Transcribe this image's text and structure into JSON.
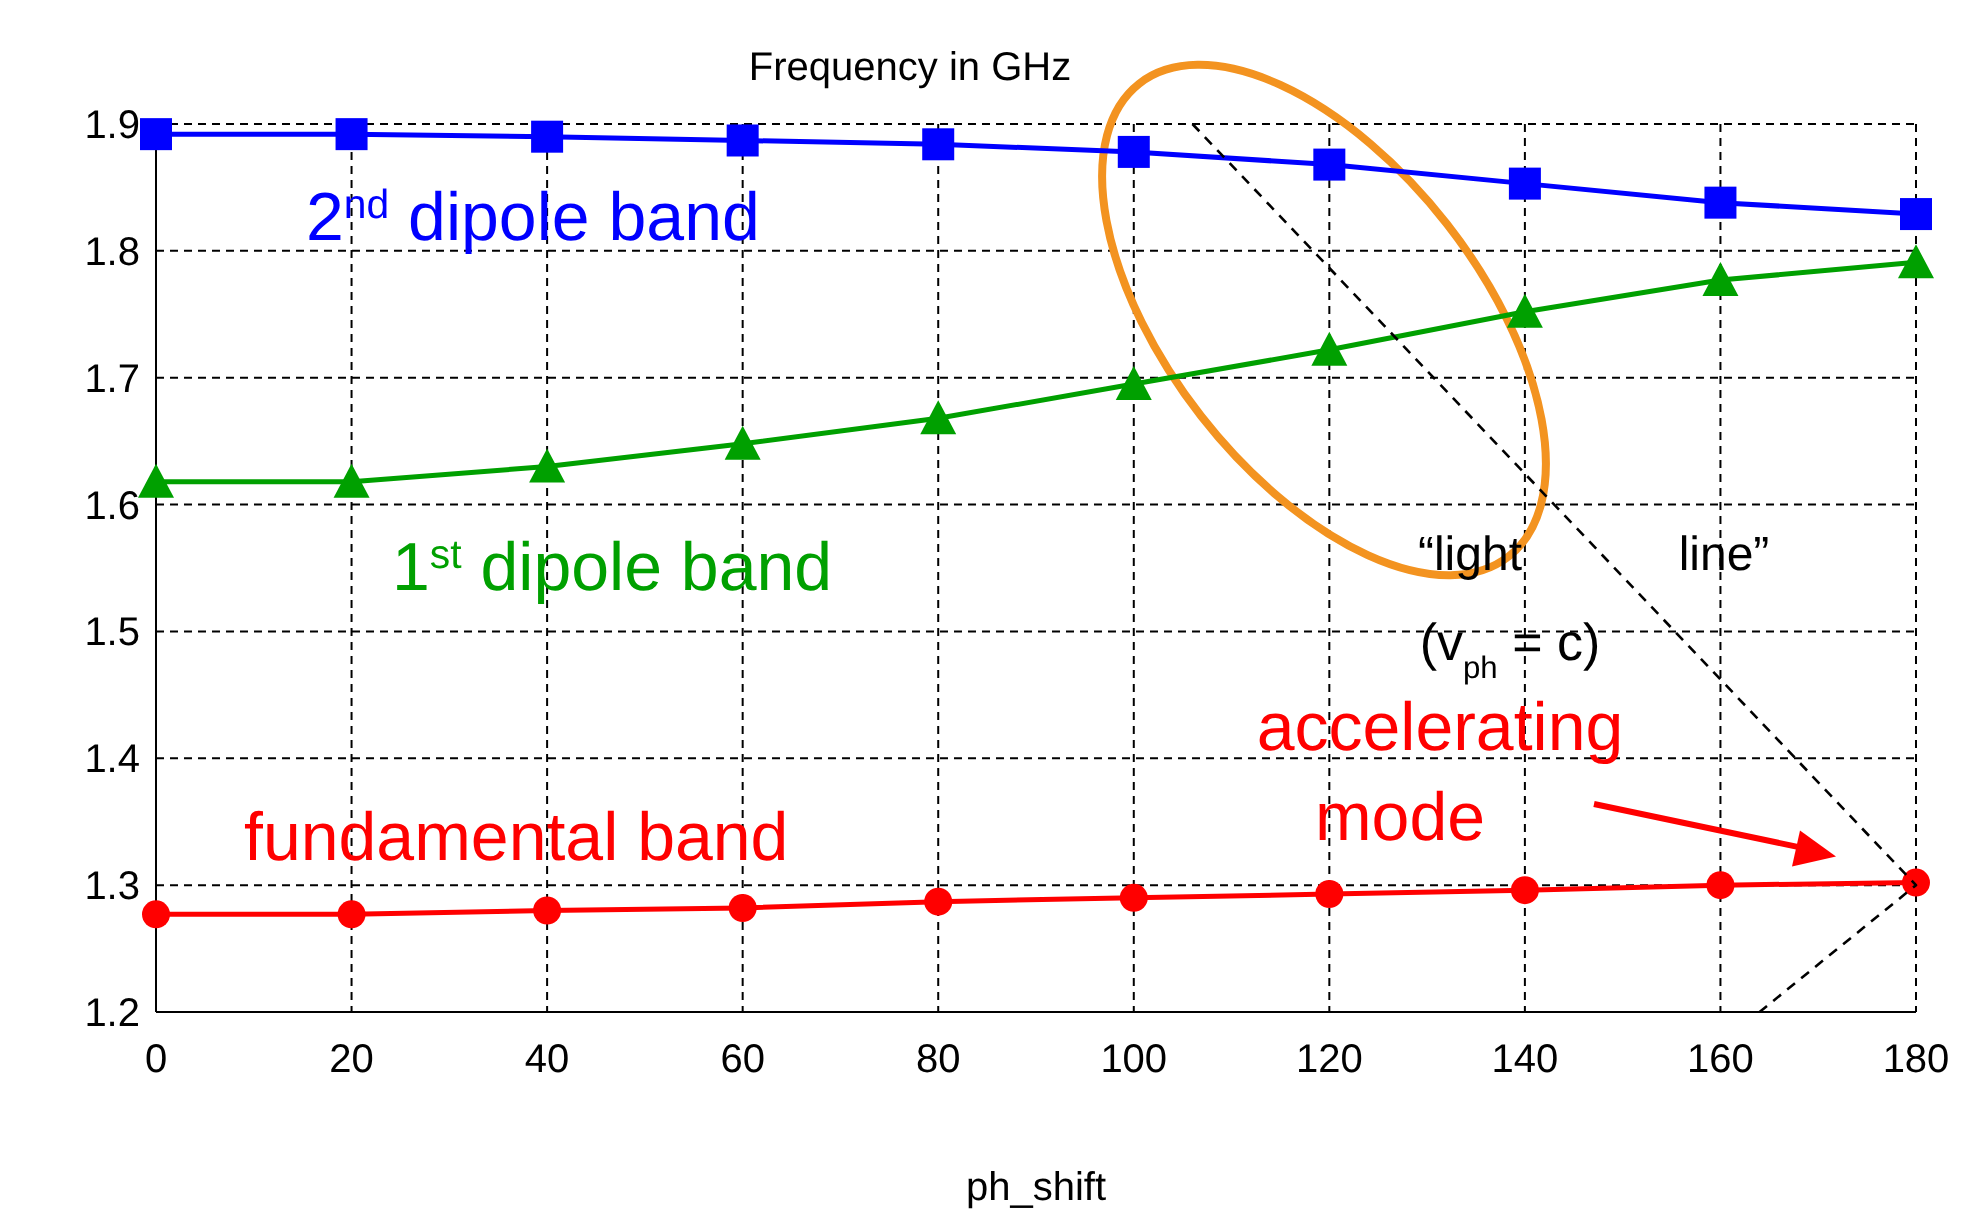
{
  "chart_data": {
    "type": "line",
    "title": "Frequency in GHz",
    "xlabel": "ph_shift",
    "x": [
      0,
      20,
      40,
      60,
      80,
      100,
      120,
      140,
      160,
      180
    ],
    "series": [
      {
        "name": "2$^{nd}$ dipole band",
        "color": "#0000ff",
        "marker": "square",
        "values": [
          1.892,
          1.892,
          1.89,
          1.887,
          1.884,
          1.878,
          1.868,
          1.853,
          1.838,
          1.829
        ]
      },
      {
        "name": "1$^{st}$ dipole band",
        "color": "#00a000",
        "marker": "triangle",
        "values": [
          1.618,
          1.618,
          1.63,
          1.648,
          1.668,
          1.695,
          1.722,
          1.752,
          1.777,
          1.791
        ]
      },
      {
        "name": "fundamental band",
        "color": "#ff0000",
        "marker": "circle",
        "values": [
          1.277,
          1.277,
          1.28,
          1.282,
          1.287,
          1.29,
          1.293,
          1.296,
          1.3,
          1.302
        ]
      },
      {
        "color": "#000000",
        "marker": "none",
        "line_style": "dashed",
        "x": [
          106,
          180,
          164
        ],
        "values": [
          1.9,
          1.3,
          1.2
        ]
      }
    ],
    "annotations": [
      "“light      line”",
      "(v$_{ph}$ = c)",
      "accelerating mode"
    ],
    "xlim": [
      0,
      180
    ],
    "xticks": [
      0,
      20,
      40,
      60,
      80,
      100,
      120,
      140,
      160,
      180
    ],
    "ylim": [
      1.2,
      1.9
    ],
    "yticks": [
      1.2,
      1.3,
      1.4,
      1.5,
      1.6,
      1.7,
      1.8,
      1.9
    ],
    "grid": true
  }
}
